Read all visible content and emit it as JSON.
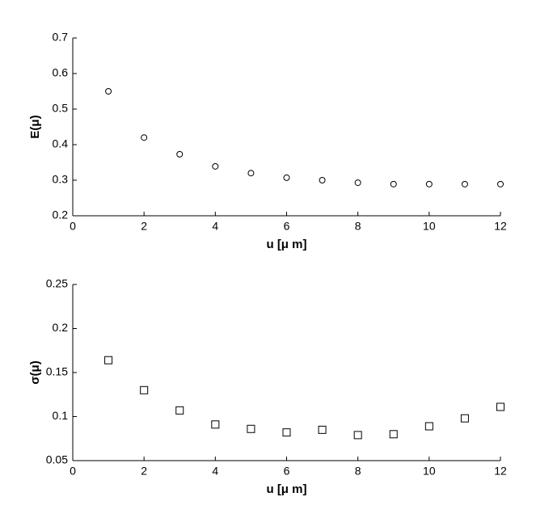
{
  "chart_data": [
    {
      "type": "scatter",
      "xlabel": "u [μ m]",
      "ylabel": "E(μ)",
      "x": [
        1,
        2,
        3,
        4,
        5,
        6,
        7,
        8,
        9,
        10,
        11,
        12
      ],
      "values": [
        0.55,
        0.42,
        0.373,
        0.339,
        0.32,
        0.307,
        0.3,
        0.293,
        0.289,
        0.289,
        0.289,
        0.289
      ],
      "color": "#000000",
      "marker": "circle",
      "xlim": [
        0,
        12
      ],
      "xticks": [
        0,
        2,
        4,
        6,
        8,
        10,
        12
      ],
      "ylim": [
        0.2,
        0.7
      ],
      "yticks": [
        0.2,
        0.3,
        0.4,
        0.5,
        0.6,
        0.7
      ]
    },
    {
      "type": "scatter",
      "xlabel": "u [μ m]",
      "ylabel": "σ(μ)",
      "x": [
        1,
        2,
        3,
        4,
        5,
        6,
        7,
        8,
        9,
        10,
        11,
        12
      ],
      "values": [
        0.164,
        0.13,
        0.107,
        0.091,
        0.086,
        0.082,
        0.085,
        0.079,
        0.08,
        0.089,
        0.098,
        0.111
      ],
      "color": "#000000",
      "marker": "square",
      "xlim": [
        0,
        12
      ],
      "xticks": [
        0,
        2,
        4,
        6,
        8,
        10,
        12
      ],
      "ylim": [
        0.05,
        0.25
      ],
      "yticks": [
        0.05,
        0.1,
        0.15,
        0.2,
        0.25
      ]
    }
  ]
}
